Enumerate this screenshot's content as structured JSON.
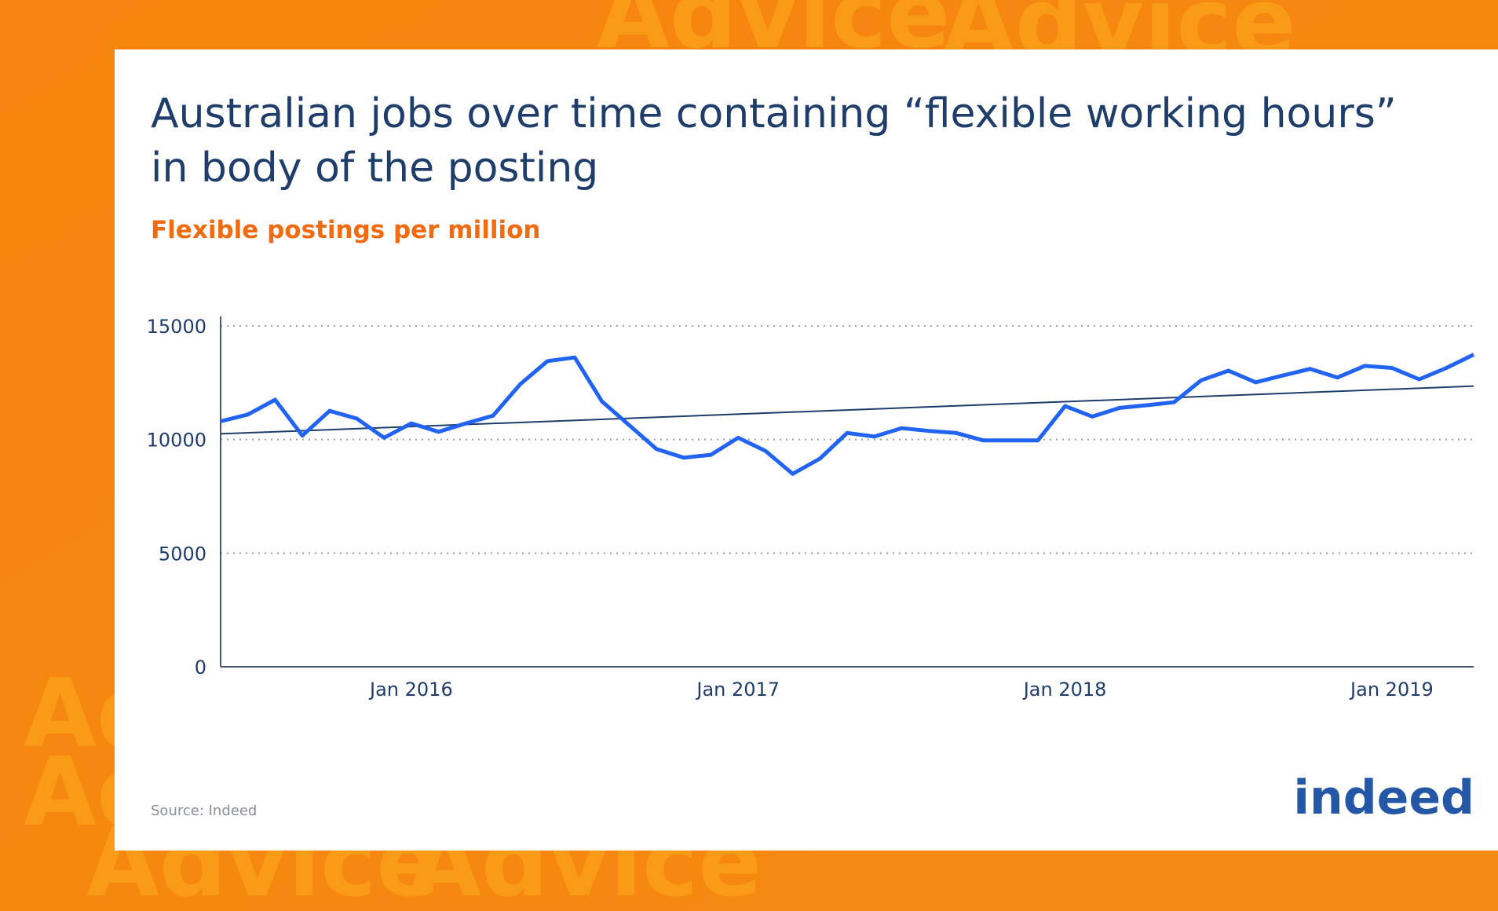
{
  "background_text": "Advice",
  "logo": "indeed",
  "source": "Source: Indeed",
  "chart_data": {
    "type": "line",
    "title_lines": [
      "Australian jobs over time containing “flexible working hours”",
      "in body of the posting"
    ],
    "subtitle": "Flexible postings per million",
    "x": [
      "2015-06",
      "2015-07",
      "2015-08",
      "2015-09",
      "2015-10",
      "2015-11",
      "2015-12",
      "2016-01",
      "2016-02",
      "2016-03",
      "2016-04",
      "2016-05",
      "2016-06",
      "2016-07",
      "2016-08",
      "2016-09",
      "2016-10",
      "2016-11",
      "2016-12",
      "2017-01",
      "2017-02",
      "2017-03",
      "2017-04",
      "2017-05",
      "2017-06",
      "2017-07",
      "2017-08",
      "2017-09",
      "2017-10",
      "2017-11",
      "2017-12",
      "2018-01",
      "2018-02",
      "2018-03",
      "2018-04",
      "2018-05",
      "2018-06",
      "2018-07",
      "2018-08",
      "2018-09",
      "2018-10",
      "2018-11",
      "2018-12",
      "2019-01",
      "2019-02",
      "2019-03",
      "2019-04"
    ],
    "series": [
      {
        "color": "#2164f3",
        "values": [
          10800,
          11100,
          11750,
          10170,
          11260,
          10920,
          10080,
          10710,
          10340,
          10710,
          11050,
          12440,
          13450,
          13610,
          11680,
          10630,
          9580,
          9200,
          9330,
          10080,
          9500,
          8490,
          9160,
          10290,
          10130,
          10500,
          10380,
          10290,
          9960,
          9960,
          9960,
          11470,
          11010,
          11390,
          11510,
          11640,
          12610,
          13030,
          12520,
          12820,
          13110,
          12730,
          13240,
          13150,
          12650,
          13150,
          13740
        ]
      }
    ],
    "trendline": {
      "color": "#1f3d6b",
      "x": [
        "2015-06",
        "2019-04"
      ],
      "values": [
        10250,
        12350
      ]
    },
    "xlim": [
      "2015-06",
      "2019-04"
    ],
    "xticks": [
      {
        "value": "2016-01",
        "label": "Jan 2016"
      },
      {
        "value": "2017-01",
        "label": "Jan 2017"
      },
      {
        "value": "2018-01",
        "label": "Jan 2018"
      },
      {
        "value": "2019-01",
        "label": "Jan 2019"
      }
    ],
    "ylim": [
      0,
      15000
    ],
    "yticks": [
      0,
      5000,
      10000,
      15000
    ],
    "grid": true
  }
}
